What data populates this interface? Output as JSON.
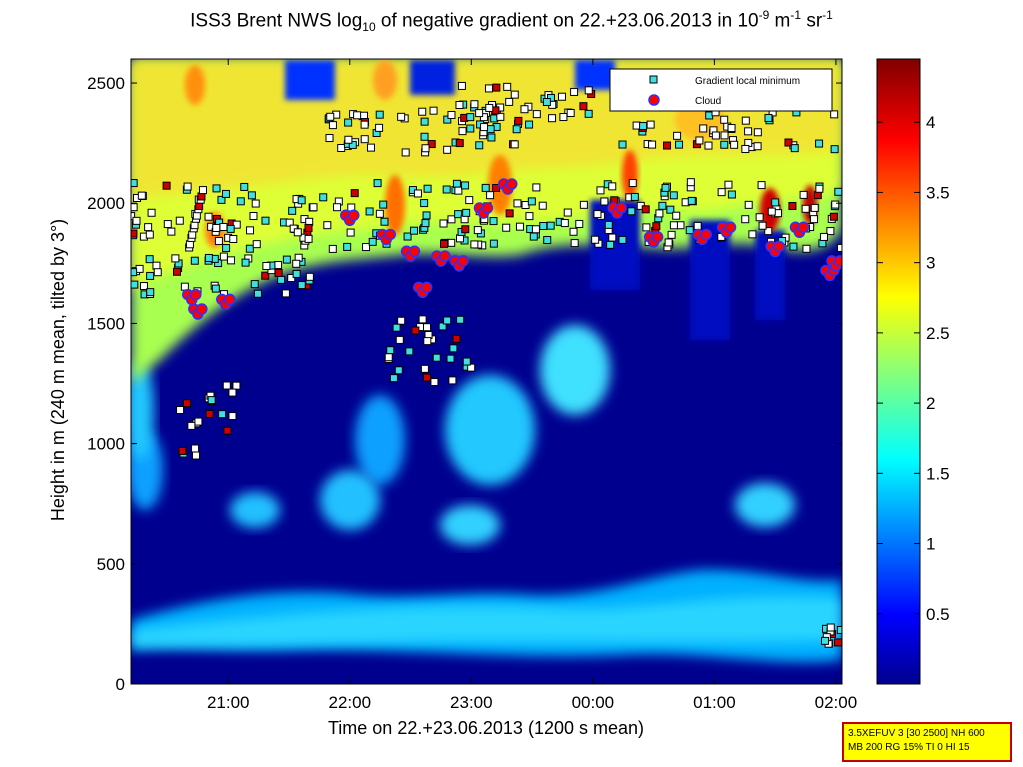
{
  "title": {
    "prefix": "ISS3 Brent NWS log",
    "sub": "10",
    "middle": " of negative gradient on 22.+23.06.2013 in 10",
    "sup1": "-9",
    "unit1": " m",
    "sup2": "-1",
    "unit2": " sr",
    "sup3": "-1"
  },
  "chart_data": {
    "type": "heatmap",
    "xlabel": "Time on 22.+23.06.2013 (1200 s mean)",
    "ylabel": "Height in m (240 m mean, tilted by 3°)",
    "x_ticks": [
      "21:00",
      "22:00",
      "23:00",
      "00:00",
      "01:00",
      "02:00"
    ],
    "x_range_hours": [
      20.2,
      26.05
    ],
    "y_ticks": [
      0,
      500,
      1000,
      1500,
      2000,
      2500
    ],
    "ylim": [
      0,
      2600
    ],
    "colorbar": {
      "ticks": [
        "0.5",
        "1",
        "1.5",
        "2",
        "2.5",
        "3",
        "3.5",
        "4"
      ],
      "range": [
        0,
        4.45
      ],
      "colormap": "jet"
    },
    "legend": {
      "position": "top-right",
      "entries": [
        {
          "label": "Gradient local minimum",
          "marker": "square",
          "color": "#40e0e0"
        },
        {
          "label": "Cloud",
          "marker": "circle",
          "color": "#ff0000"
        }
      ]
    },
    "cloud_points": [
      [
        20.7,
        1620
      ],
      [
        20.75,
        1560
      ],
      [
        20.98,
        1600
      ],
      [
        22.0,
        1950
      ],
      [
        22.3,
        1870
      ],
      [
        22.5,
        1800
      ],
      [
        22.6,
        1650
      ],
      [
        22.75,
        1780
      ],
      [
        22.9,
        1760
      ],
      [
        23.1,
        1980
      ],
      [
        23.3,
        2080
      ],
      [
        24.2,
        1980
      ],
      [
        24.5,
        1860
      ],
      [
        24.9,
        1870
      ],
      [
        25.1,
        1900
      ],
      [
        25.5,
        1820
      ],
      [
        25.7,
        1900
      ],
      [
        25.95,
        1720
      ],
      [
        26.0,
        1760
      ]
    ]
  },
  "info_box": {
    "line1": "3.5XEFUV 3 [30 2500] NH 600",
    "line2": "MB 200 RG 15% TI 0 HI 15"
  }
}
